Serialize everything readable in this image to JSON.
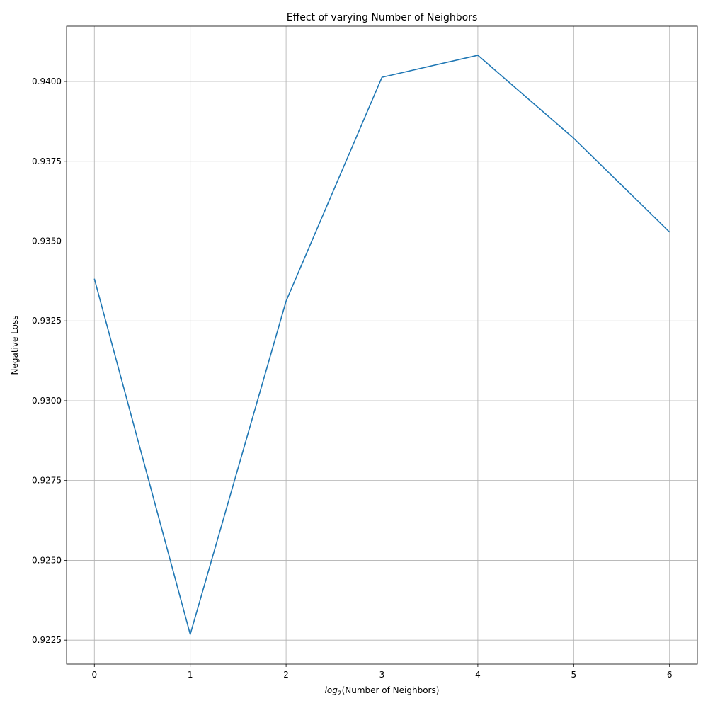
{
  "chart_data": {
    "type": "line",
    "title": "Effect of varying Number of Neighbors",
    "xlabel": "(Number of Neighbors)",
    "xlabel_prefix": "log",
    "xlabel_subscript": "2",
    "ylabel": "Negative Loss",
    "x": [
      0,
      1,
      2,
      3,
      4,
      5,
      6
    ],
    "series": [
      {
        "values": [
          0.93382,
          0.92268,
          0.93312,
          0.94013,
          0.94082,
          0.93822,
          0.93528
        ],
        "color": "#1f77b4"
      }
    ],
    "xlim": [
      -0.29,
      6.29
    ],
    "ylim": [
      0.92175,
      0.94173
    ],
    "xticks": [
      0,
      1,
      2,
      3,
      4,
      5,
      6
    ],
    "xtick_labels": [
      "0",
      "1",
      "2",
      "3",
      "4",
      "5",
      "6"
    ],
    "yticks": [
      0.9225,
      0.925,
      0.9275,
      0.93,
      0.9325,
      0.935,
      0.9375,
      0.94
    ],
    "ytick_labels": [
      "0.9225",
      "0.9250",
      "0.9275",
      "0.9300",
      "0.9325",
      "0.9350",
      "0.9375",
      "0.9400"
    ],
    "grid": true,
    "legend": "none"
  }
}
